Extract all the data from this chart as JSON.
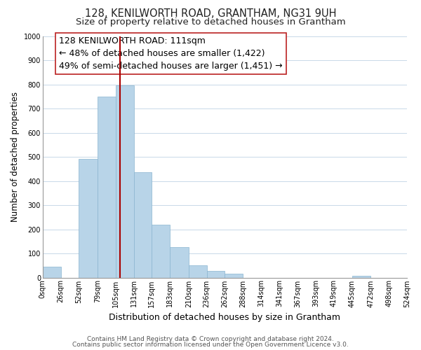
{
  "title": "128, KENILWORTH ROAD, GRANTHAM, NG31 9UH",
  "subtitle": "Size of property relative to detached houses in Grantham",
  "xlabel": "Distribution of detached houses by size in Grantham",
  "ylabel": "Number of detached properties",
  "bar_edges": [
    0,
    26,
    52,
    79,
    105,
    131,
    157,
    183,
    210,
    236,
    262,
    288,
    314,
    341,
    367,
    393,
    419,
    445,
    472,
    498,
    524
  ],
  "bar_heights": [
    45,
    0,
    490,
    750,
    795,
    435,
    220,
    125,
    52,
    28,
    15,
    0,
    0,
    0,
    0,
    0,
    0,
    8,
    0,
    0
  ],
  "bar_color": "#b8d4e8",
  "property_line_x": 111,
  "property_line_color": "#aa0000",
  "ylim": [
    0,
    1000
  ],
  "yticks": [
    0,
    100,
    200,
    300,
    400,
    500,
    600,
    700,
    800,
    900,
    1000
  ],
  "annotation_title": "128 KENILWORTH ROAD: 111sqm",
  "annotation_line1": "← 48% of detached houses are smaller (1,422)",
  "annotation_line2": "49% of semi-detached houses are larger (1,451) →",
  "footer1": "Contains HM Land Registry data © Crown copyright and database right 2024.",
  "footer2": "Contains public sector information licensed under the Open Government Licence v3.0.",
  "background_color": "#ffffff",
  "grid_color": "#c8d8e8",
  "title_fontsize": 10.5,
  "subtitle_fontsize": 9.5,
  "xlabel_fontsize": 9,
  "ylabel_fontsize": 8.5,
  "tick_fontsize": 7,
  "annotation_fontsize": 9,
  "footer_fontsize": 6.5
}
